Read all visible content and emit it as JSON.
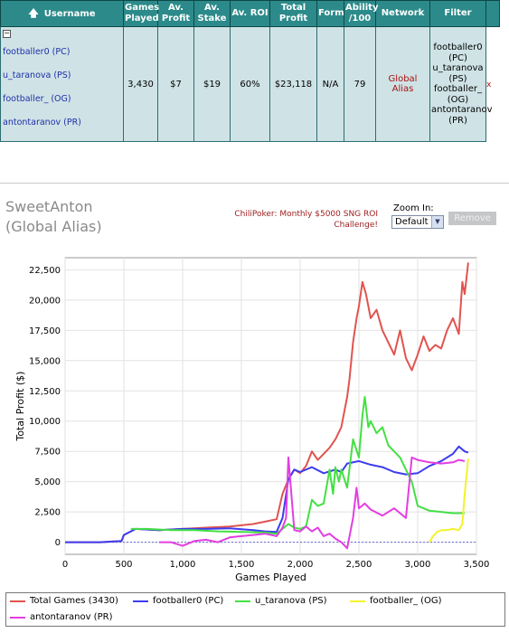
{
  "table": {
    "headers": {
      "username": "Username",
      "games_played": "Games Played",
      "av_profit": "Av. Profit",
      "av_stake": "Av. Stake",
      "av_roi": "Av. ROI",
      "total_profit": "Total Profit",
      "form": "Form",
      "ability": "Ability /100",
      "network": "Network",
      "filter": "Filter"
    },
    "collapse_symbol": "−",
    "sort_symbol": "🡅",
    "usernames": [
      "footballer0 (PC)",
      "u_taranova (PS)",
      "footballer_ (OG)",
      "antontaranov (PR)"
    ],
    "row": {
      "games_played": "3,430",
      "av_profit": "$7",
      "av_stake": "$19",
      "av_roi": "60%",
      "total_profit": "$23,118",
      "form": "N/A",
      "ability": "79",
      "network": "Global Alias",
      "filter_lines": [
        "footballer0",
        "(PC)",
        "u_taranova",
        "(PS)",
        "footballer_",
        "(OG)",
        "antontaranov",
        "(PR)"
      ],
      "remove_x": "x"
    }
  },
  "player": {
    "name": "SweetAnton",
    "alias": "(Global Alias)"
  },
  "promo": {
    "line1": "ChiliPoker: Monthly $5000 SNG ROI",
    "line2": "Challenge!"
  },
  "zoom": {
    "label": "Zoom In:",
    "value": "Default"
  },
  "remove_button": "Remove",
  "chart_data": {
    "type": "line",
    "xlabel": "Games Played",
    "ylabel": "Total Profit ($)",
    "xlim": [
      0,
      3500
    ],
    "ylim": [
      -1000,
      23500
    ],
    "xticks": [
      "0",
      "500",
      "1,000",
      "1,500",
      "2,000",
      "2,500",
      "3,000",
      "3,500"
    ],
    "xtick_values": [
      0,
      500,
      1000,
      1500,
      2000,
      2500,
      3000,
      3500
    ],
    "yticks": [
      "0",
      "2,500",
      "5,000",
      "7,500",
      "10,000",
      "12,500",
      "15,000",
      "17,500",
      "20,000",
      "22,500"
    ],
    "ytick_values": [
      0,
      2500,
      5000,
      7500,
      10000,
      12500,
      15000,
      17500,
      20000,
      22500
    ],
    "grid": true,
    "legend_position": "bottom",
    "series": [
      {
        "name": "Total Games (3430)",
        "color": "#e0544f",
        "x": [
          0,
          300,
          480,
          500,
          560,
          600,
          800,
          1000,
          1200,
          1400,
          1600,
          1700,
          1800,
          1850,
          1900,
          1950,
          2000,
          2050,
          2100,
          2150,
          2200,
          2250,
          2300,
          2350,
          2400,
          2420,
          2450,
          2480,
          2500,
          2530,
          2560,
          2600,
          2650,
          2700,
          2750,
          2800,
          2850,
          2900,
          2950,
          3000,
          3050,
          3100,
          3150,
          3200,
          3250,
          3300,
          3350,
          3380,
          3400,
          3430
        ],
        "y": [
          0,
          0,
          100,
          600,
          900,
          1100,
          1000,
          1100,
          1200,
          1300,
          1500,
          1700,
          1900,
          4000,
          5200,
          6000,
          5700,
          6300,
          7500,
          6800,
          7300,
          7800,
          8500,
          9500,
          12000,
          13500,
          16500,
          18500,
          19500,
          21500,
          20500,
          18500,
          19200,
          17500,
          16500,
          15500,
          17500,
          15200,
          14200,
          15500,
          17000,
          15800,
          16300,
          16000,
          17500,
          18500,
          17200,
          21500,
          20500,
          23100
        ]
      },
      {
        "name": "footballer0 (PC)",
        "color": "#3c3cf0",
        "x": [
          0,
          300,
          480,
          500,
          560,
          600,
          800,
          1000,
          1200,
          1400,
          1600,
          1700,
          1800,
          1850,
          1900,
          1950,
          2000,
          2100,
          2200,
          2300,
          2350,
          2400,
          2500,
          2600,
          2700,
          2800,
          2900,
          3000,
          3100,
          3200,
          3300,
          3350,
          3400,
          3430
        ],
        "y": [
          0,
          0,
          100,
          600,
          900,
          1100,
          1000,
          1100,
          1100,
          1150,
          1000,
          900,
          850,
          2000,
          5200,
          6000,
          5800,
          6200,
          5700,
          6000,
          5800,
          6500,
          6700,
          6400,
          6200,
          5800,
          5600,
          5700,
          6300,
          6700,
          7300,
          7900,
          7500,
          7400
        ]
      },
      {
        "name": "u_taranova (PS)",
        "color": "#43e043",
        "x": [
          560,
          700,
          900,
          1100,
          1300,
          1500,
          1700,
          1800,
          1900,
          1950,
          2000,
          2050,
          2100,
          2150,
          2200,
          2250,
          2280,
          2300,
          2330,
          2350,
          2400,
          2450,
          2500,
          2530,
          2550,
          2580,
          2600,
          2650,
          2700,
          2750,
          2800,
          2850,
          2900,
          2950,
          3000,
          3100,
          3200,
          3300,
          3400
        ],
        "y": [
          1100,
          1100,
          1000,
          1000,
          900,
          850,
          800,
          700,
          1500,
          1200,
          1100,
          1300,
          3500,
          3000,
          3200,
          6000,
          4000,
          6200,
          5000,
          6000,
          4500,
          8500,
          7000,
          10500,
          12000,
          9500,
          10000,
          9000,
          9500,
          8000,
          7500,
          7000,
          6000,
          5000,
          3000,
          2600,
          2500,
          2400,
          2400
        ]
      },
      {
        "name": "footballer_ (OG)",
        "color": "#f2f22e",
        "x": [
          3100,
          3130,
          3160,
          3200,
          3250,
          3300,
          3350,
          3380,
          3400,
          3430
        ],
        "y": [
          0,
          500,
          800,
          1000,
          1000,
          1100,
          1000,
          1500,
          4000,
          6900
        ]
      },
      {
        "name": "antontaranov (PR)",
        "color": "#e23ee2",
        "x": [
          800,
          900,
          1000,
          1100,
          1200,
          1300,
          1400,
          1500,
          1600,
          1700,
          1800,
          1850,
          1880,
          1900,
          1950,
          2000,
          2050,
          2100,
          2150,
          2200,
          2250,
          2300,
          2350,
          2400,
          2450,
          2480,
          2500,
          2550,
          2600,
          2700,
          2800,
          2900,
          2950,
          3000,
          3100,
          3200,
          3300,
          3350,
          3400
        ],
        "y": [
          0,
          0,
          -300,
          100,
          200,
          0,
          400,
          500,
          600,
          700,
          500,
          1200,
          2000,
          7000,
          1000,
          900,
          1300,
          900,
          1200,
          500,
          700,
          300,
          0,
          -500,
          2000,
          4500,
          2800,
          3200,
          2700,
          2200,
          2800,
          2000,
          7000,
          6800,
          6600,
          6500,
          6600,
          6800,
          6700
        ]
      }
    ]
  }
}
